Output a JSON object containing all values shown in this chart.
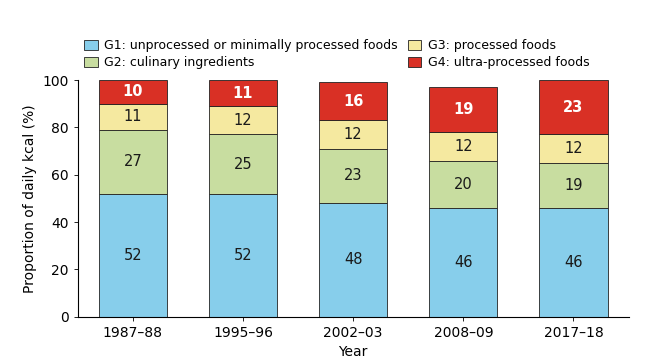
{
  "years": [
    "1987–88",
    "1995–96",
    "2002–03",
    "2008–09",
    "2017–18"
  ],
  "G1": [
    52,
    52,
    48,
    46,
    46
  ],
  "G2": [
    27,
    25,
    23,
    20,
    19
  ],
  "G3": [
    11,
    12,
    12,
    12,
    12
  ],
  "G4": [
    10,
    11,
    16,
    19,
    23
  ],
  "color_G1": "#87CEEB",
  "color_G2": "#C8DDA0",
  "color_G3": "#F5E9A0",
  "color_G4": "#D93025",
  "ylabel": "Proportion of daily kcal (%)",
  "xlabel": "Year",
  "ylim": [
    0,
    100
  ],
  "legend_G1": "G1: unprocessed or minimally processed foods",
  "legend_G2": "G2: culinary ingredients",
  "legend_G3": "G3: processed foods",
  "legend_G4": "G4: ultra-processed foods",
  "bar_width": 0.62,
  "label_fontsize": 10.5,
  "axis_fontsize": 10,
  "legend_fontsize": 9,
  "text_color_dark": "#1a1a1a",
  "text_color_light": "#ffffff",
  "edge_color": "#222222",
  "background_color": "#ffffff"
}
